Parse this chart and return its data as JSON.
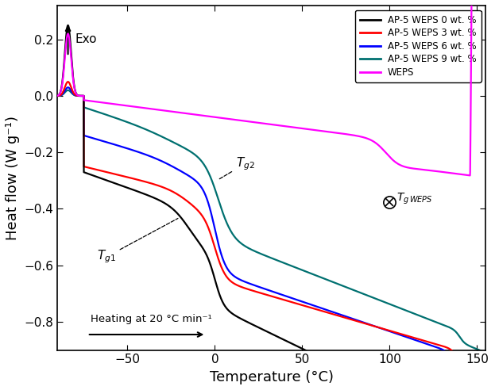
{
  "title": "",
  "xlabel": "Temperature (°C)",
  "ylabel": "Heat flow (W g⁻¹)",
  "xlim": [
    -90,
    155
  ],
  "ylim": [
    -0.9,
    0.32
  ],
  "yticks": [
    -0.8,
    -0.6,
    -0.4,
    -0.2,
    0.0,
    0.2
  ],
  "xticks": [
    -50,
    0,
    50,
    100,
    150
  ],
  "legend_labels": [
    "AP-5 WEPS 0 wt. %",
    "AP-5 WEPS 3 wt. %",
    "AP-5 WEPS 6 wt. %",
    "AP-5 WEPS 9 wt. %",
    "WEPS"
  ],
  "line_colors": [
    "black",
    "red",
    "blue",
    "#007070",
    "magenta"
  ],
  "exo_text": "Exo",
  "heating_text": "Heating at 20 °C min⁻¹",
  "tg1_text": "$T_{g1}$",
  "tg2_text": "$T_{g2}$",
  "tgweps_text": "$T_{g\\,WEPS}$"
}
